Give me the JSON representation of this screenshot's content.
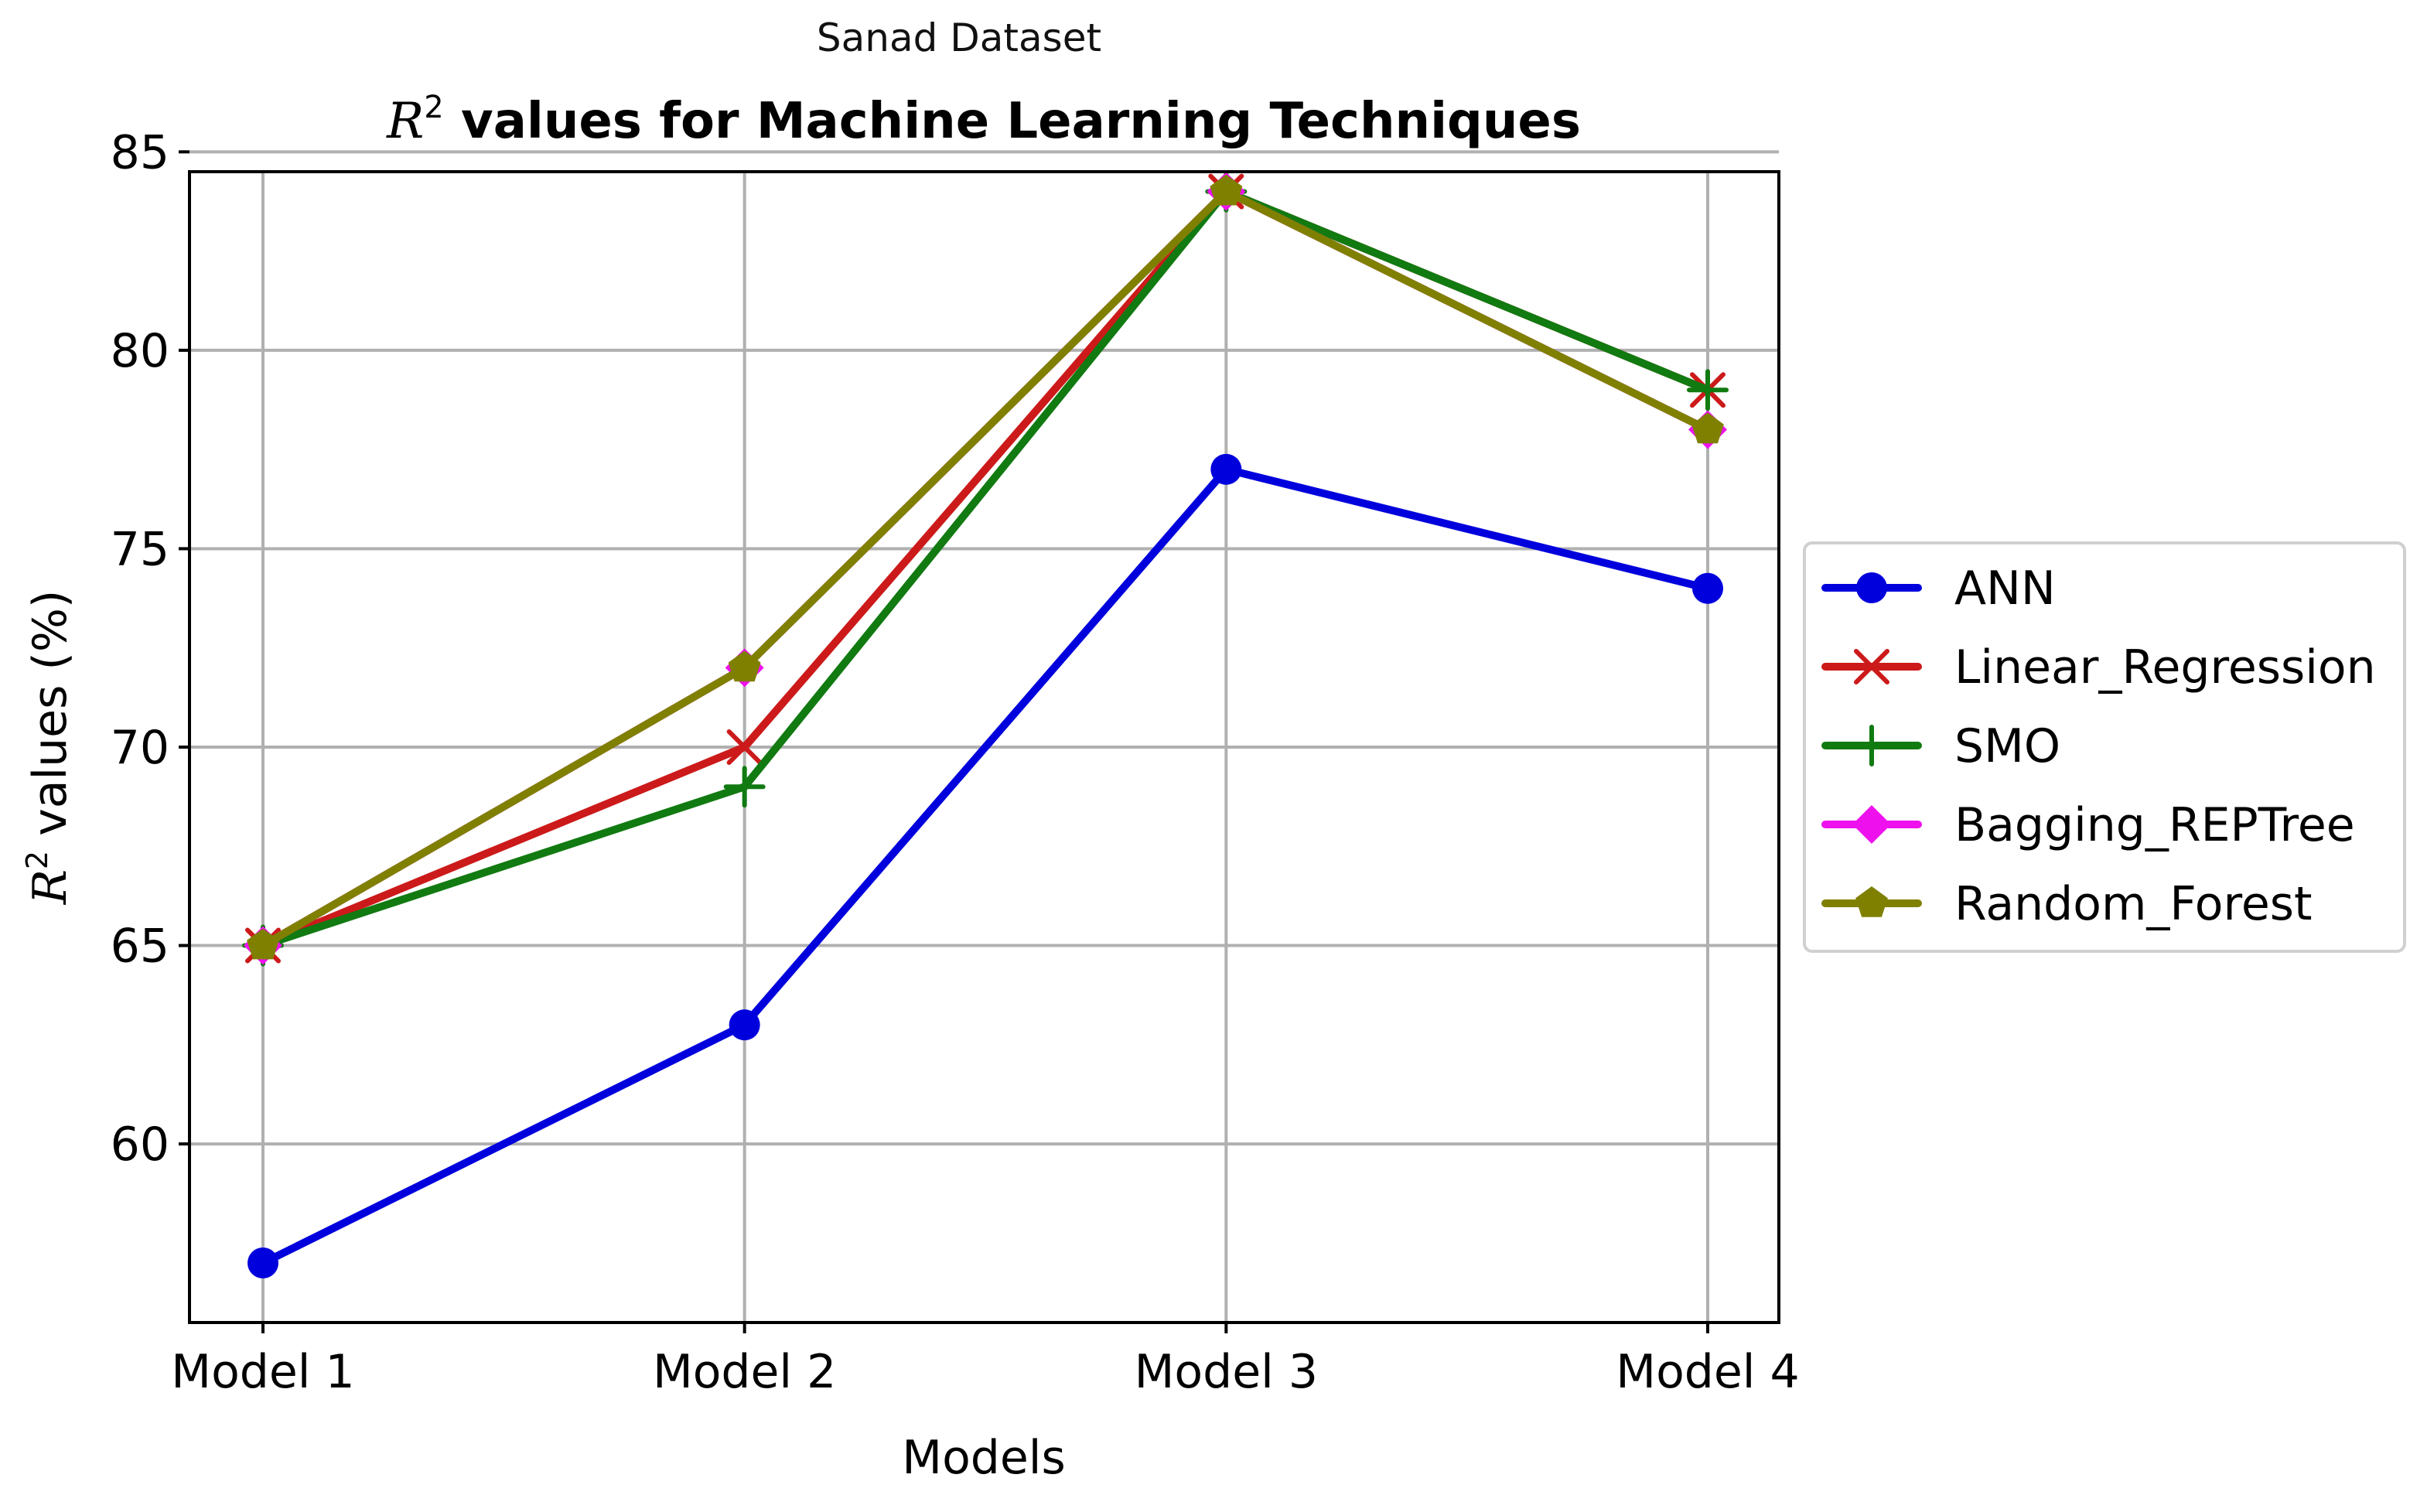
{
  "chart_data": {
    "type": "line",
    "suptitle": "Sanad Dataset",
    "title_prefix": "R",
    "title_superscript": "2",
    "title_text": " values for Machine Learning Techniques",
    "xlabel": "Models",
    "ylabel_prefix": "R",
    "ylabel_superscript": "2",
    "ylabel_text": " values (%)",
    "categories": [
      "Model 1",
      "Model 2",
      "Model 3",
      "Model 4"
    ],
    "ylim": [
      55.5,
      84.5
    ],
    "yticks": [
      60,
      65,
      70,
      75,
      80,
      85
    ],
    "grid": true,
    "legend_position": "center-right outside",
    "series": [
      {
        "name": "ANN",
        "values": [
          57,
          63,
          77,
          74
        ],
        "color": "#0000dd",
        "marker": "circle"
      },
      {
        "name": "Linear_Regression",
        "values": [
          65,
          70,
          84,
          79
        ],
        "color": "#cc1a1a",
        "marker": "x"
      },
      {
        "name": "SMO",
        "values": [
          65,
          69,
          84,
          79
        ],
        "color": "#117a11",
        "marker": "plus"
      },
      {
        "name": "Bagging_REPTree",
        "values": [
          65,
          72,
          84,
          78
        ],
        "color": "#ee11ee",
        "marker": "diamond"
      },
      {
        "name": "Random_Forest",
        "values": [
          65,
          72,
          84,
          78
        ],
        "color": "#808000",
        "marker": "pentagon"
      }
    ]
  }
}
